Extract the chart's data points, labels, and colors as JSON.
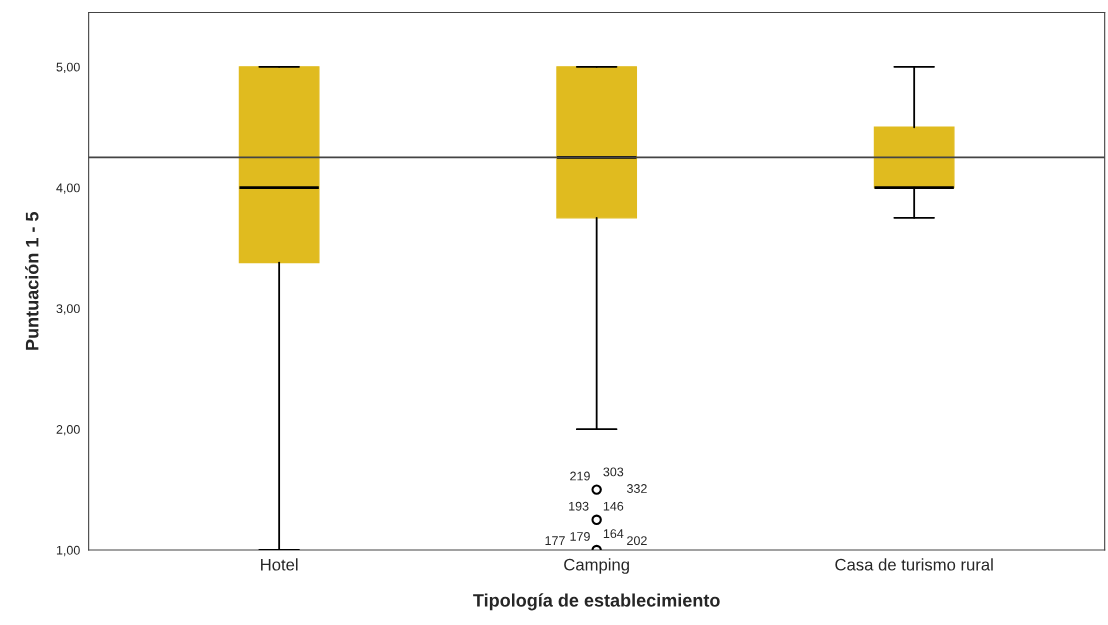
{
  "chart_data": {
    "type": "box",
    "xlabel": "Tipología de establecimiento",
    "ylabel": "Puntuación 1 - 5",
    "categories": [
      "Hotel",
      "Camping",
      "Casa de turismo rural"
    ],
    "boxes": [
      {
        "low": 1.0,
        "q1": 3.38,
        "median": 4.0,
        "q3": 5.0,
        "high": 5.0
      },
      {
        "low": 2.0,
        "q1": 3.75,
        "median": 4.25,
        "q3": 5.0,
        "high": 5.0,
        "outliers": [
          1.5,
          1.25,
          1.0
        ]
      },
      {
        "low": 3.75,
        "q1": 4.0,
        "median": 4.0,
        "q3": 4.5,
        "high": 5.0
      }
    ],
    "color": "#e0bb1f",
    "ylim": [
      1.0,
      5.45
    ],
    "yticks": [
      {
        "value": 1,
        "label": "1,00"
      },
      {
        "value": 2,
        "label": "2,00"
      },
      {
        "value": 3,
        "label": "3,00"
      },
      {
        "value": 4,
        "label": "4,00"
      },
      {
        "value": 5,
        "label": "5,00"
      }
    ],
    "ref_lines": [
      {
        "axis": "y",
        "value": 4.25,
        "color": "#444444"
      }
    ],
    "annotations": [
      "219",
      "303",
      "332",
      "193",
      "146",
      "177",
      "179",
      "164",
      "202"
    ],
    "grid": false,
    "legend": false
  }
}
